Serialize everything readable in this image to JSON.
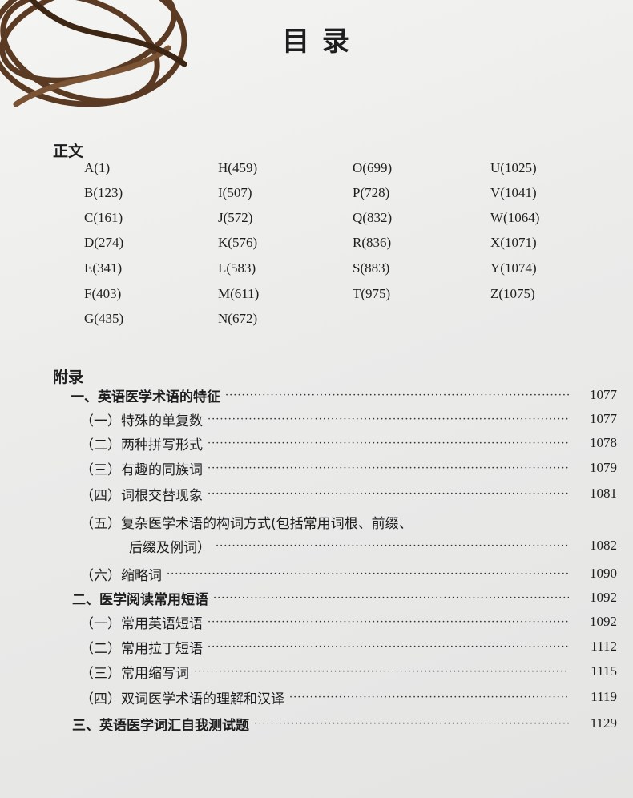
{
  "title": "目 录",
  "main_section": {
    "heading": "正文",
    "columns": [
      [
        "A(1)",
        "B(123)",
        "C(161)",
        "D(274)",
        "E(341)",
        "F(403)",
        "G(435)"
      ],
      [
        "H(459)",
        "I(507)",
        "J(572)",
        "K(576)",
        "L(583)",
        "M(611)",
        "N(672)"
      ],
      [
        "O(699)",
        "P(728)",
        "Q(832)",
        "R(836)",
        "S(883)",
        "T(975)"
      ],
      [
        "U(1025)",
        "V(1041)",
        "W(1064)",
        "X(1071)",
        "Y(1074)",
        "Z(1075)"
      ]
    ]
  },
  "appendix": {
    "heading": "附录",
    "entries": [
      {
        "label": "一、英语医学术语的特征",
        "page": "1077"
      },
      {
        "label": "（一）特殊的单复数",
        "page": "1077"
      },
      {
        "label": "（二）两种拼写形式",
        "page": "1078"
      },
      {
        "label": "（三）有趣的同族词",
        "page": "1079"
      },
      {
        "label": "（四）词根交替现象",
        "page": "1081"
      },
      {
        "label": "（五）复杂医学术语的构词方式(包括常用词根、前缀、",
        "page": ""
      },
      {
        "label": "后缀及例词）",
        "page": "1082"
      },
      {
        "label": "（六）缩略词",
        "page": "1090"
      },
      {
        "label": "二、医学阅读常用短语",
        "page": "1092"
      },
      {
        "label": "（一）常用英语短语",
        "page": "1092"
      },
      {
        "label": "（二）常用拉丁短语",
        "page": "1112"
      },
      {
        "label": "（三）常用缩写词",
        "page": "1115"
      },
      {
        "label": "（四）双词医学术语的理解和汉译",
        "page": "1119"
      },
      {
        "label": "三、英语医学词汇自我测试题",
        "page": "1129"
      }
    ]
  }
}
